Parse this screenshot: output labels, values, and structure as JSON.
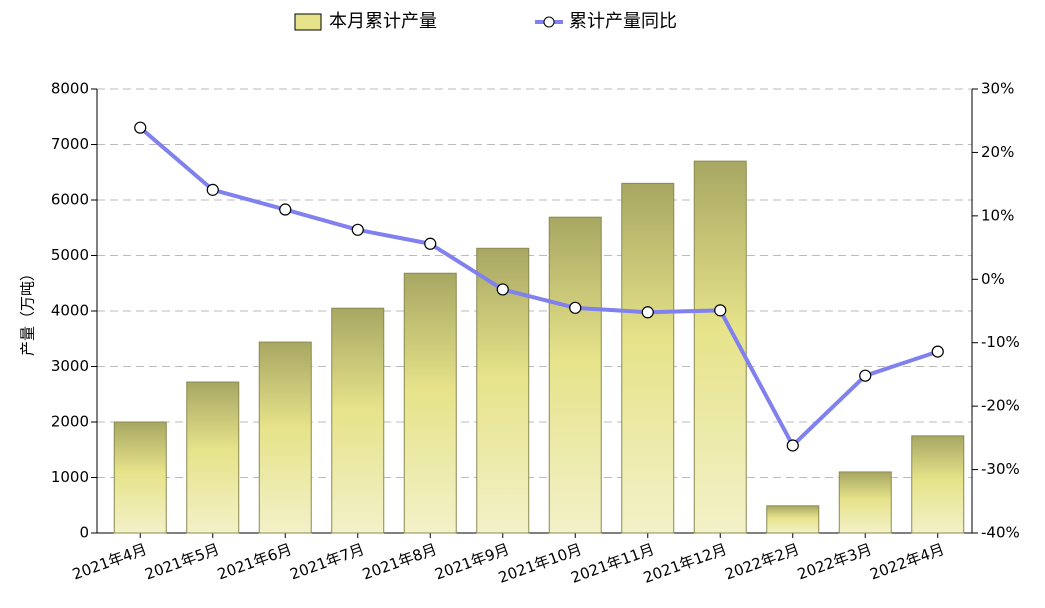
{
  "chart_data": {
    "type": "bar",
    "ylabel": "产量（万吨）",
    "categories": [
      "2021年4月",
      "2021年5月",
      "2021年6月",
      "2021年7月",
      "2021年8月",
      "2021年9月",
      "2021年10月",
      "2021年11月",
      "2021年12月",
      "2022年2月",
      "2022年3月",
      "2022年4月"
    ],
    "series": [
      {
        "name": "本月累计产量",
        "type": "bar",
        "color": "#e6e38a",
        "values": [
          2000,
          2720,
          3440,
          4050,
          4680,
          5130,
          5690,
          6300,
          6700,
          490,
          1100,
          1750
        ]
      },
      {
        "name": "累计产量同比",
        "type": "line",
        "axis": "y2",
        "color": "#8080ee",
        "values": [
          23.9,
          14.1,
          11.0,
          7.8,
          5.6,
          -1.6,
          -4.5,
          -5.2,
          -4.9,
          -26.2,
          -15.2,
          -11.4
        ]
      }
    ],
    "ylim": [
      0,
      8000
    ],
    "yticks": [
      0,
      1000,
      2000,
      3000,
      4000,
      5000,
      6000,
      7000,
      8000
    ],
    "y2lim": [
      -40,
      30
    ],
    "y2ticks": [
      {
        "value": -40,
        "label": "-40%"
      },
      {
        "value": -30,
        "label": "-30%"
      },
      {
        "value": -20,
        "label": "-20%"
      },
      {
        "value": -10,
        "label": "-10%"
      },
      {
        "value": 0,
        "label": "0%"
      },
      {
        "value": 10,
        "label": "10%"
      },
      {
        "value": 20,
        "label": "20%"
      },
      {
        "value": 30,
        "label": "30%"
      }
    ],
    "grid": true,
    "legend": "top"
  }
}
